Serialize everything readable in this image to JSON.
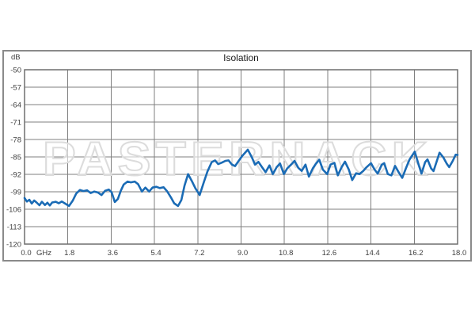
{
  "chart": {
    "title": "Isolation",
    "y_unit": "dB",
    "x_unit": "GHz",
    "watermark": "PASTERNACK",
    "colors": {
      "line": "#1a6bb5",
      "grid": "#7f7f7f",
      "plot_border": "#6f6f6f",
      "frame": "#8a8a8a",
      "tick_label": "#404040",
      "title": "#1a1a1a",
      "watermark_stroke": "#dcdcdc"
    }
  },
  "chart_data": {
    "type": "line",
    "title": "Isolation",
    "xlabel": "GHz",
    "ylabel": "dB",
    "xlim": [
      0,
      18
    ],
    "ylim": [
      -120,
      -50
    ],
    "x_ticks": [
      0.0,
      1.8,
      3.6,
      5.4,
      7.2,
      9.0,
      10.8,
      12.6,
      14.4,
      16.2,
      18.0
    ],
    "y_ticks": [
      -50,
      -57,
      -64,
      -71,
      -78,
      -85,
      -92,
      -99,
      -106,
      -113,
      -120
    ],
    "grid": true,
    "legend": false,
    "series": [
      {
        "name": "Isolation",
        "color": "#1a6bb5",
        "points": [
          [
            0.0,
            -101.5
          ],
          [
            0.1,
            -102.9
          ],
          [
            0.2,
            -102.2
          ],
          [
            0.3,
            -103.7
          ],
          [
            0.4,
            -102.5
          ],
          [
            0.5,
            -103.3
          ],
          [
            0.62,
            -104.4
          ],
          [
            0.72,
            -103.0
          ],
          [
            0.85,
            -104.3
          ],
          [
            0.95,
            -103.4
          ],
          [
            1.05,
            -104.5
          ],
          [
            1.15,
            -103.3
          ],
          [
            1.3,
            -103.0
          ],
          [
            1.42,
            -103.6
          ],
          [
            1.55,
            -102.9
          ],
          [
            1.7,
            -103.8
          ],
          [
            1.85,
            -104.7
          ],
          [
            2.0,
            -102.6
          ],
          [
            2.15,
            -99.7
          ],
          [
            2.3,
            -98.3
          ],
          [
            2.45,
            -98.7
          ],
          [
            2.6,
            -98.4
          ],
          [
            2.75,
            -99.5
          ],
          [
            2.9,
            -98.9
          ],
          [
            3.05,
            -99.3
          ],
          [
            3.2,
            -100.3
          ],
          [
            3.35,
            -98.6
          ],
          [
            3.5,
            -98.1
          ],
          [
            3.62,
            -99.2
          ],
          [
            3.75,
            -103.1
          ],
          [
            3.88,
            -101.9
          ],
          [
            4.0,
            -98.6
          ],
          [
            4.12,
            -96.1
          ],
          [
            4.28,
            -94.9
          ],
          [
            4.42,
            -95.2
          ],
          [
            4.58,
            -94.9
          ],
          [
            4.72,
            -95.9
          ],
          [
            4.88,
            -98.9
          ],
          [
            5.02,
            -97.3
          ],
          [
            5.18,
            -98.9
          ],
          [
            5.32,
            -97.3
          ],
          [
            5.48,
            -97.0
          ],
          [
            5.62,
            -97.5
          ],
          [
            5.78,
            -97.2
          ],
          [
            5.92,
            -98.7
          ],
          [
            6.08,
            -101.2
          ],
          [
            6.22,
            -103.6
          ],
          [
            6.38,
            -104.7
          ],
          [
            6.52,
            -102.3
          ],
          [
            6.65,
            -96.5
          ],
          [
            6.8,
            -91.9
          ],
          [
            6.95,
            -94.6
          ],
          [
            7.1,
            -97.6
          ],
          [
            7.28,
            -100.3
          ],
          [
            7.45,
            -95.2
          ],
          [
            7.6,
            -90.9
          ],
          [
            7.78,
            -87.1
          ],
          [
            7.92,
            -86.4
          ],
          [
            8.05,
            -87.9
          ],
          [
            8.2,
            -87.3
          ],
          [
            8.35,
            -86.6
          ],
          [
            8.48,
            -86.4
          ],
          [
            8.62,
            -88.1
          ],
          [
            8.75,
            -88.7
          ],
          [
            8.9,
            -86.6
          ],
          [
            9.05,
            -84.6
          ],
          [
            9.28,
            -82.1
          ],
          [
            9.45,
            -85.2
          ],
          [
            9.58,
            -88.1
          ],
          [
            9.72,
            -87.0
          ],
          [
            9.88,
            -89.2
          ],
          [
            10.02,
            -91.1
          ],
          [
            10.18,
            -88.4
          ],
          [
            10.32,
            -91.9
          ],
          [
            10.48,
            -89.1
          ],
          [
            10.62,
            -87.6
          ],
          [
            10.78,
            -91.9
          ],
          [
            10.92,
            -89.6
          ],
          [
            11.08,
            -88.1
          ],
          [
            11.22,
            -86.6
          ],
          [
            11.38,
            -89.4
          ],
          [
            11.52,
            -90.6
          ],
          [
            11.68,
            -88.1
          ],
          [
            11.82,
            -92.9
          ],
          [
            11.98,
            -89.6
          ],
          [
            12.1,
            -87.9
          ],
          [
            12.25,
            -86.1
          ],
          [
            12.4,
            -90.1
          ],
          [
            12.58,
            -91.9
          ],
          [
            12.72,
            -88.1
          ],
          [
            12.88,
            -87.4
          ],
          [
            13.02,
            -92.4
          ],
          [
            13.18,
            -89.1
          ],
          [
            13.32,
            -86.9
          ],
          [
            13.48,
            -90.1
          ],
          [
            13.62,
            -94.3
          ],
          [
            13.78,
            -91.6
          ],
          [
            13.92,
            -91.9
          ],
          [
            14.08,
            -90.6
          ],
          [
            14.22,
            -89.1
          ],
          [
            14.4,
            -87.5
          ],
          [
            14.55,
            -90.1
          ],
          [
            14.68,
            -91.7
          ],
          [
            14.85,
            -88.1
          ],
          [
            14.95,
            -87.5
          ],
          [
            15.1,
            -91.9
          ],
          [
            15.25,
            -92.4
          ],
          [
            15.4,
            -88.6
          ],
          [
            15.55,
            -91.1
          ],
          [
            15.7,
            -93.4
          ],
          [
            15.85,
            -89.6
          ],
          [
            16.0,
            -86.1
          ],
          [
            16.22,
            -82.9
          ],
          [
            16.38,
            -88.1
          ],
          [
            16.5,
            -91.7
          ],
          [
            16.65,
            -87.1
          ],
          [
            16.75,
            -86.0
          ],
          [
            16.9,
            -89.6
          ],
          [
            17.0,
            -90.7
          ],
          [
            17.12,
            -87.1
          ],
          [
            17.25,
            -83.3
          ],
          [
            17.4,
            -85.1
          ],
          [
            17.55,
            -87.7
          ],
          [
            17.65,
            -89.1
          ],
          [
            17.8,
            -86.6
          ],
          [
            17.92,
            -84.1
          ],
          [
            18.0,
            -84.2
          ]
        ]
      }
    ]
  }
}
